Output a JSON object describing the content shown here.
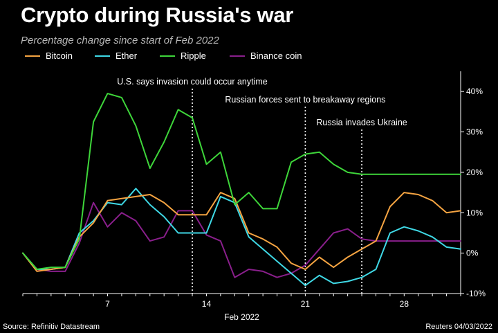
{
  "title": "Crypto during Russia's war",
  "subtitle": "Percentage change since start of Feb 2022",
  "source": "Source: Refinitiv Datastream",
  "credit": "Reuters 04/03/2022",
  "chart_data": {
    "type": "line",
    "xlabel": "Feb 2022",
    "x": [
      1,
      2,
      3,
      4,
      5,
      6,
      7,
      8,
      9,
      10,
      11,
      12,
      13,
      14,
      15,
      16,
      17,
      18,
      19,
      20,
      21,
      22,
      23,
      24,
      25,
      26,
      27,
      28,
      29,
      30,
      31,
      32
    ],
    "xlim": [
      1,
      32
    ],
    "xticks": [
      {
        "x": 7,
        "label": "7"
      },
      {
        "x": 14,
        "label": "14"
      },
      {
        "x": 21,
        "label": "21"
      },
      {
        "x": 28,
        "label": "28"
      }
    ],
    "ylim": [
      -10,
      45
    ],
    "yticks": [
      {
        "y": 40,
        "label": "40%"
      },
      {
        "y": 30,
        "label": "30%"
      },
      {
        "y": 20,
        "label": "20%"
      },
      {
        "y": 10,
        "label": "10%"
      },
      {
        "y": 0,
        "label": "0%"
      },
      {
        "y": -10,
        "label": "-10%"
      }
    ],
    "series": [
      {
        "name": "Bitcoin",
        "color": "#f5a442",
        "values": [
          0,
          -4.5,
          -4,
          -3.5,
          4,
          7.5,
          13,
          13.5,
          14,
          14.5,
          12.5,
          9.5,
          9.5,
          9.5,
          15,
          13.5,
          5,
          3.5,
          1.5,
          -2.5,
          -4,
          -1,
          -3.5,
          -1,
          1,
          3,
          11.5,
          15,
          14.5,
          13,
          10,
          10.5
        ]
      },
      {
        "name": "Ether",
        "color": "#3fd9e6",
        "values": [
          0,
          -4,
          -4,
          -3.5,
          5,
          8,
          12.5,
          12,
          16,
          12,
          9,
          5,
          5,
          5,
          14,
          12.5,
          4,
          1,
          -2,
          -5,
          -8,
          -5.5,
          -7.5,
          -7,
          -6,
          -4,
          5,
          6.5,
          5.5,
          4,
          1.5,
          1
        ]
      },
      {
        "name": "Ripple",
        "color": "#3ed63a",
        "values": [
          0,
          -4,
          -3.5,
          -3.5,
          3.5,
          32.5,
          39.5,
          38.5,
          31.5,
          21,
          27.5,
          35.5,
          33.5,
          22,
          25,
          12,
          15,
          11,
          11,
          22.5,
          24.5,
          25,
          22,
          20,
          19.5,
          19.5,
          19.5,
          19.5,
          19.5,
          19.5,
          19.5,
          19.5
        ]
      },
      {
        "name": "Binance coin",
        "color": "#8a1f8c",
        "values": [
          0,
          -4,
          -4.5,
          -4.5,
          2.5,
          12.5,
          6.5,
          10,
          8,
          3,
          4,
          10.5,
          10.5,
          4.5,
          3,
          -6,
          -4,
          -4.5,
          -6,
          -5,
          -3,
          1,
          5,
          6,
          3.5,
          3,
          3,
          3,
          3,
          3,
          3,
          3
        ]
      }
    ],
    "annotations": [
      {
        "x": 13,
        "label": "U.S. says invasion could occur anytime"
      },
      {
        "x": 21,
        "label": "Russian forces sent to breakaway regions"
      },
      {
        "x": 25,
        "label": "Russia invades Ukraine"
      }
    ],
    "legend": "top-left",
    "grid": false
  }
}
